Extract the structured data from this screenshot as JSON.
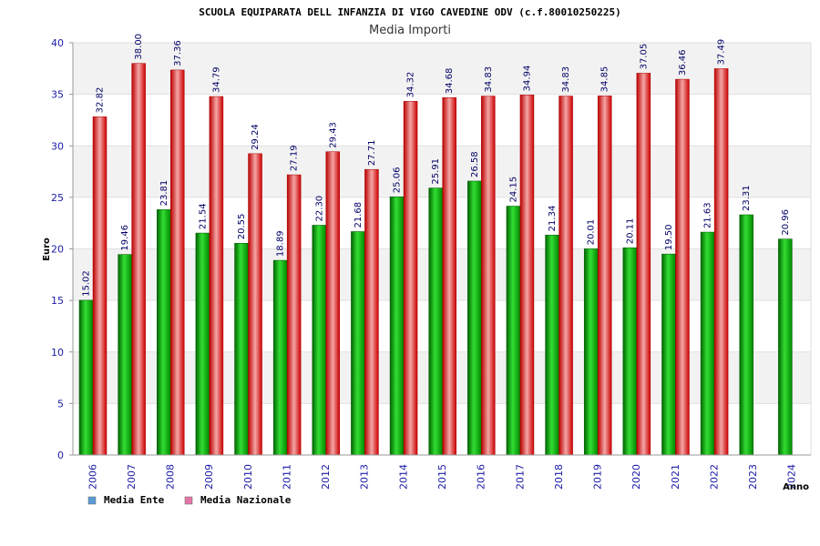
{
  "chart_data": {
    "type": "bar",
    "title": "SCUOLA EQUIPARATA DELL INFANZIA DI VIGO CAVEDINE ODV (c.f.80010250225)",
    "subtitle": "Media Importi",
    "ylabel": "Euro",
    "xlabel": "Anno",
    "ylim": [
      0,
      40
    ],
    "yticks": [
      0,
      5,
      10,
      15,
      20,
      25,
      30,
      35,
      40
    ],
    "categories": [
      "2006",
      "2007",
      "2008",
      "2009",
      "2010",
      "2011",
      "2012",
      "2013",
      "2014",
      "2015",
      "2016",
      "2017",
      "2018",
      "2019",
      "2020",
      "2021",
      "2022",
      "2023",
      "2024"
    ],
    "series": [
      {
        "name": "Media Ente",
        "values": [
          15.02,
          19.46,
          23.81,
          21.54,
          20.55,
          18.89,
          22.3,
          21.68,
          25.06,
          25.91,
          26.58,
          24.15,
          21.34,
          20.01,
          20.11,
          19.5,
          21.63,
          23.31,
          20.96
        ],
        "labels": [
          "15.02",
          "19.46",
          "23.81",
          "21.54",
          "20.55",
          "18.89",
          "22.30",
          "21.68",
          "25.06",
          "25.91",
          "26.58",
          "24.15",
          "21.34",
          "20.01",
          "20.11",
          "19.50",
          "21.63",
          "23.31",
          "20.96"
        ]
      },
      {
        "name": "Media Nazionale",
        "values": [
          32.82,
          38.0,
          37.36,
          34.79,
          29.24,
          27.19,
          29.43,
          27.71,
          34.32,
          34.68,
          34.83,
          34.94,
          34.83,
          34.85,
          37.05,
          36.46,
          37.49,
          null,
          null
        ],
        "labels": [
          "32.82",
          "38.00",
          "37.36",
          "34.79",
          "29.24",
          "27.19",
          "29.43",
          "27.71",
          "34.32",
          "34.68",
          "34.83",
          "34.94",
          "34.83",
          "34.85",
          "37.05",
          "36.46",
          "37.49",
          null,
          null
        ]
      }
    ],
    "legend": [
      {
        "label": "Media Ente",
        "color": "#5b9bd5"
      },
      {
        "label": "Media Nazionale",
        "color": "#e377a8"
      }
    ],
    "colors": {
      "ente_dark": "#007a00",
      "ente_light": "#33dd33",
      "naz_dark": "#cc0000",
      "naz_light": "#f0a0a0",
      "band": "#f2f2f2",
      "axis": "#999999"
    }
  }
}
